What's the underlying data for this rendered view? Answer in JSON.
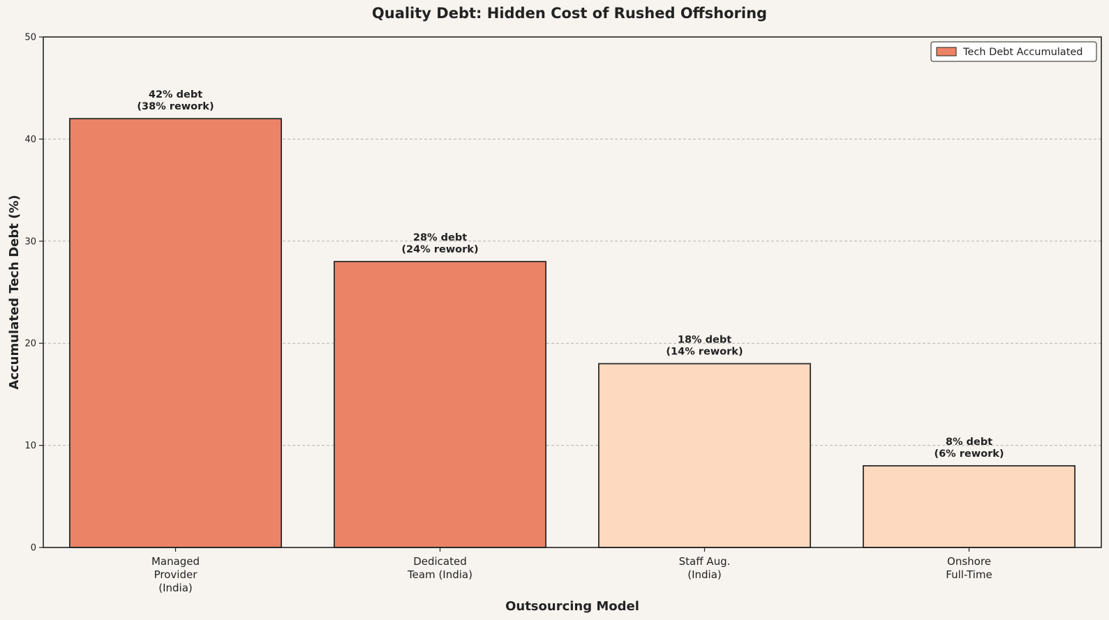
{
  "chart_data": {
    "type": "bar",
    "title": "Quality Debt: Hidden Cost of Rushed Offshoring",
    "xlabel": "Outsourcing Model",
    "ylabel": "Accumulated Tech Debt (%)",
    "ylim": [
      0,
      50
    ],
    "yticks": [
      "0",
      "10",
      "20",
      "30",
      "40",
      "50"
    ],
    "grid": "y-dashed",
    "legend_position": "top-right",
    "categories": [
      [
        "Managed",
        "Provider",
        "(India)"
      ],
      [
        "Dedicated",
        "Team (India)"
      ],
      [
        "Staff Aug.",
        "(India)"
      ],
      [
        "Onshore",
        "Full-Time"
      ]
    ],
    "series": [
      {
        "name": "Tech Debt Accumulated",
        "values": [
          42,
          28,
          18,
          8
        ],
        "colors": [
          "#eb8466",
          "#eb8466",
          "#fdd9bf",
          "#fdd9bf"
        ]
      }
    ],
    "bar_labels": [
      [
        "42% debt",
        "(38% rework)"
      ],
      [
        "28% debt",
        "(24% rework)"
      ],
      [
        "18% debt",
        "(14% rework)"
      ],
      [
        "8% debt",
        "(6% rework)"
      ]
    ]
  }
}
